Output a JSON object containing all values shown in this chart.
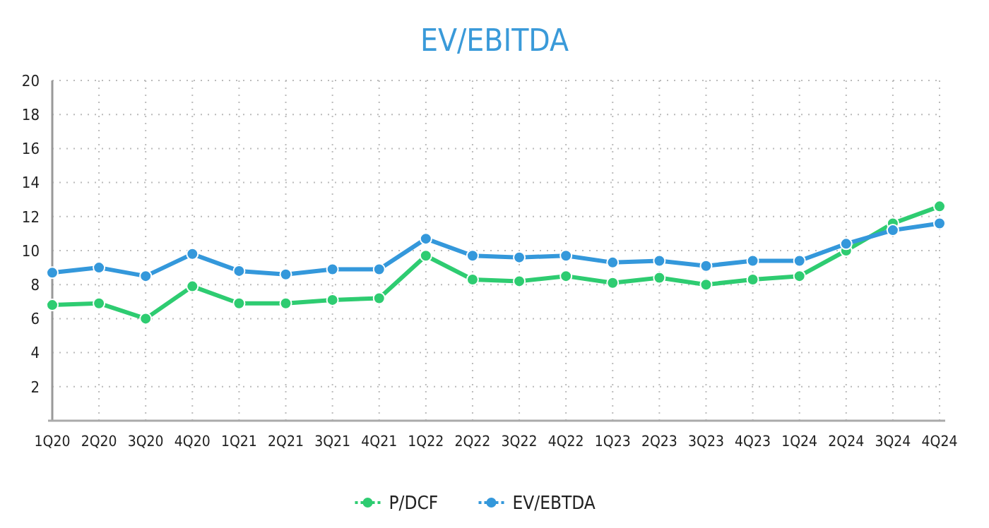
{
  "chart_data": {
    "type": "line",
    "title": "EV/EBITDA",
    "categories": [
      "1Q20",
      "2Q20",
      "3Q20",
      "4Q20",
      "1Q21",
      "2Q21",
      "3Q21",
      "4Q21",
      "1Q22",
      "2Q22",
      "3Q22",
      "4Q22",
      "1Q23",
      "2Q23",
      "3Q23",
      "4Q23",
      "1Q24",
      "2Q24",
      "3Q24",
      "4Q24"
    ],
    "series": [
      {
        "name": "P/DCF",
        "color": "#2ecc71",
        "values": [
          6.8,
          6.9,
          6.0,
          7.9,
          6.9,
          6.9,
          7.1,
          7.2,
          9.7,
          8.3,
          8.2,
          8.5,
          8.1,
          8.4,
          8.0,
          8.3,
          8.5,
          10.0,
          11.6,
          12.6
        ]
      },
      {
        "name": "EV/EBTDA",
        "color": "#3498db",
        "values": [
          8.7,
          9.0,
          8.5,
          9.8,
          8.8,
          8.6,
          8.9,
          8.9,
          10.7,
          9.7,
          9.6,
          9.7,
          9.3,
          9.4,
          9.1,
          9.4,
          9.4,
          10.4,
          11.2,
          11.6
        ]
      }
    ],
    "ylim": [
      0,
      20
    ],
    "yticks": [
      2,
      4,
      6,
      8,
      10,
      12,
      14,
      16,
      18,
      20
    ],
    "grid": true,
    "legend": "bottom",
    "marker": "circle",
    "line_style": "solid"
  }
}
